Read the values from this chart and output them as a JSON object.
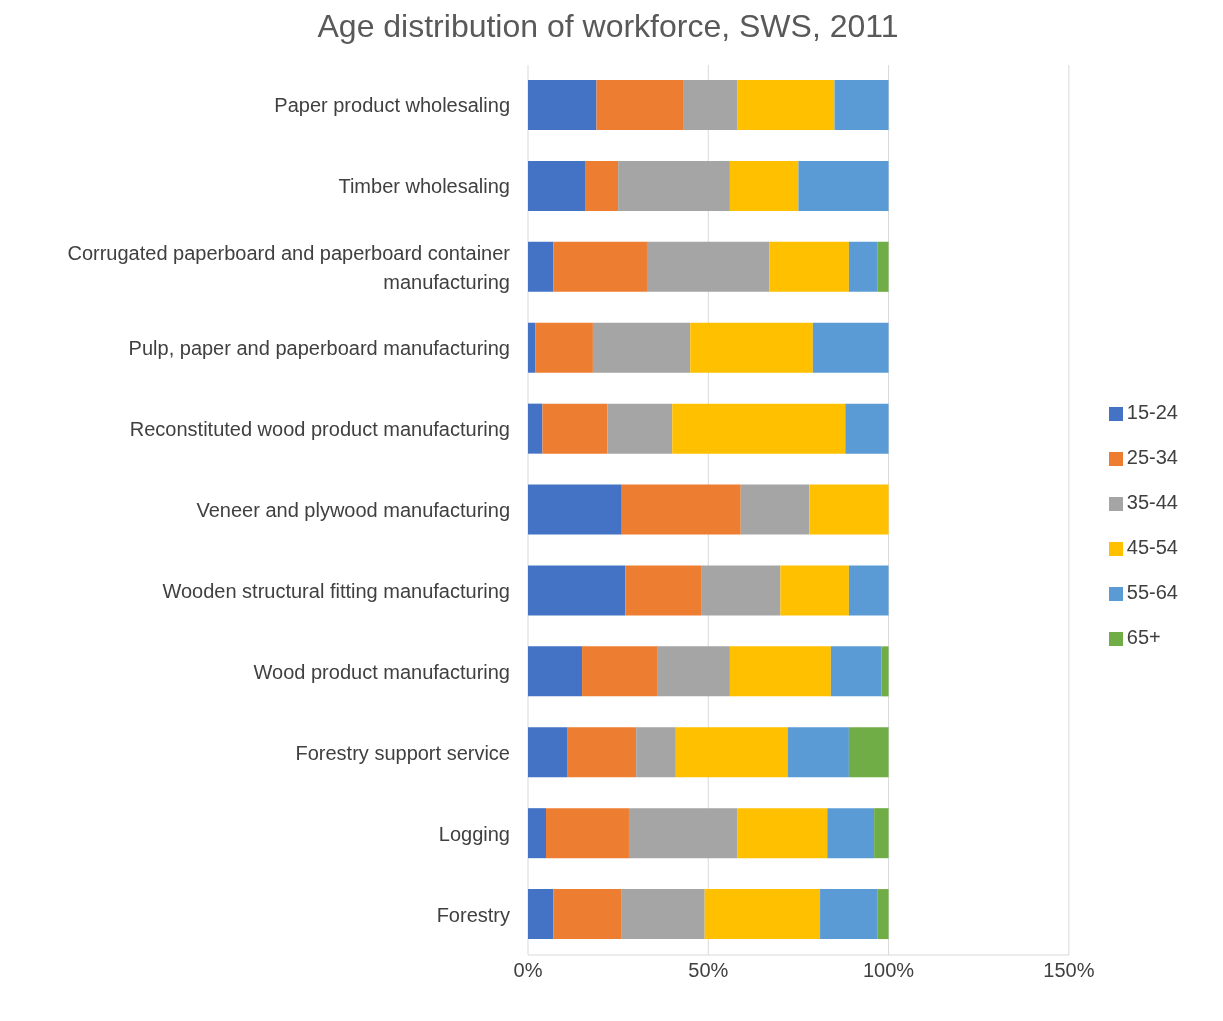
{
  "chart_data": {
    "type": "bar",
    "orientation": "horizontal",
    "stacked": true,
    "title": "Age distribution of workforce, SWS, 2011",
    "categories": [
      "Paper product wholesaling",
      "Timber wholesaling",
      "Corrugated paperboard and paperboard container manufacturing",
      "Pulp, paper and paperboard manufacturing",
      "Reconstituted wood product manufacturing",
      "Veneer and plywood manufacturing",
      "Wooden structural fitting manufacturing",
      "Wood product manufacturing",
      "Forestry support service",
      "Logging",
      "Forestry"
    ],
    "series": [
      {
        "name": "15-24",
        "color": "#4472c4",
        "values": [
          19,
          16,
          7,
          2,
          4,
          26,
          27,
          15,
          11,
          5,
          7
        ]
      },
      {
        "name": "25-34",
        "color": "#ed7d31",
        "values": [
          24,
          9,
          26,
          16,
          18,
          33,
          21,
          21,
          19,
          23,
          19
        ]
      },
      {
        "name": "35-44",
        "color": "#a5a5a5",
        "values": [
          15,
          31,
          34,
          27,
          18,
          19,
          22,
          20,
          11,
          30,
          23
        ]
      },
      {
        "name": "45-54",
        "color": "#ffc000",
        "values": [
          27,
          19,
          22,
          34,
          48,
          22,
          19,
          28,
          31,
          25,
          32
        ]
      },
      {
        "name": "55-64",
        "color": "#5b9bd5",
        "values": [
          15,
          25,
          8,
          21,
          12,
          0,
          11,
          14,
          17,
          13,
          16
        ]
      },
      {
        "name": "65+",
        "color": "#70ad47",
        "values": [
          0,
          0,
          3,
          0,
          0,
          0,
          0,
          2,
          11,
          4,
          3
        ]
      }
    ],
    "xlim": [
      0,
      150
    ],
    "xticks": [
      {
        "value": 0,
        "label": "0%"
      },
      {
        "value": 50,
        "label": "50%"
      },
      {
        "value": 100,
        "label": "100%"
      },
      {
        "value": 150,
        "label": "150%"
      }
    ],
    "grid": "x",
    "legend": "right"
  }
}
